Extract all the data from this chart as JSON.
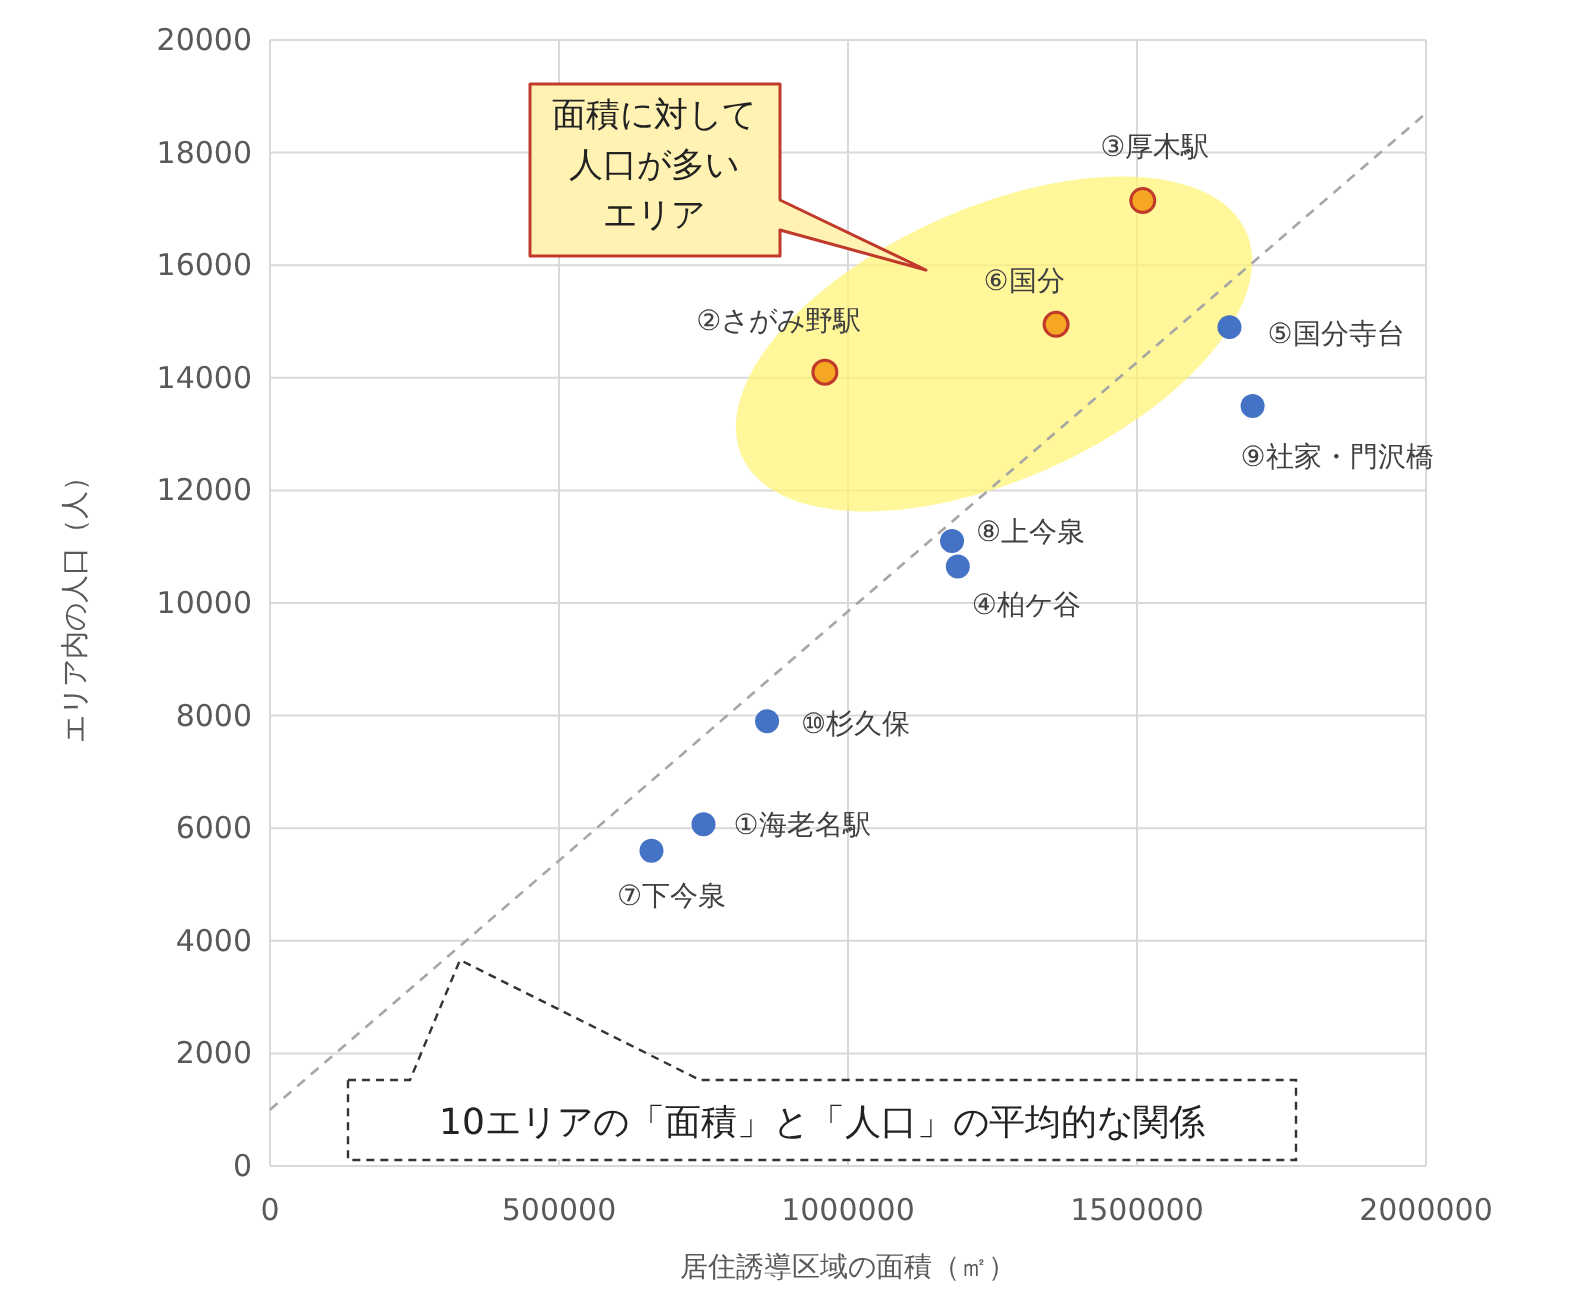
{
  "chart_data": {
    "type": "scatter",
    "xlabel": "居住誘導区域の面積（㎡）",
    "ylabel": "エリア内の人口（人）",
    "xlim": [
      0,
      2000000
    ],
    "xticks": [
      0,
      500000,
      1000000,
      1500000,
      2000000
    ],
    "ylim": [
      0,
      20000
    ],
    "yticks": [
      0,
      2000,
      4000,
      6000,
      8000,
      10000,
      12000,
      14000,
      16000,
      18000,
      20000
    ],
    "grid": true,
    "marker": "circle",
    "series": [
      {
        "color": "#4472c4",
        "x": [
          750000,
          1190000,
          1660000,
          660000,
          1180000,
          1700000,
          860000
        ],
        "values": [
          6070,
          10650,
          14900,
          5600,
          11100,
          13500,
          7900
        ]
      },
      {
        "color": "#f5a623",
        "x": [
          960000,
          1510000,
          1360000
        ],
        "values": [
          14100,
          17150,
          14950
        ]
      },
      {
        "type": "line",
        "line_style": "dashed",
        "marker": "none",
        "color": "#a6a6a6",
        "x": [
          0,
          2000000
        ],
        "values": [
          1000,
          18700
        ]
      }
    ],
    "annotations": [
      {
        "text": "①海老名駅",
        "x": 750000,
        "y": 6070
      },
      {
        "text": "②さがみ野駅",
        "x": 960000,
        "y": 14100
      },
      {
        "text": "③厚木駅",
        "x": 1510000,
        "y": 17150
      },
      {
        "text": "④柏ケ谷",
        "x": 1190000,
        "y": 10650
      },
      {
        "text": "⑤国分寺台",
        "x": 1660000,
        "y": 14900
      },
      {
        "text": "⑥国分",
        "x": 1360000,
        "y": 14950
      },
      {
        "text": "⑦下今泉",
        "x": 660000,
        "y": 5600
      },
      {
        "text": "⑧上今泉",
        "x": 1180000,
        "y": 11100
      },
      {
        "text": "⑨社家・門沢橋",
        "x": 1700000,
        "y": 13500
      },
      {
        "text": "⑩杉久保",
        "x": 860000,
        "y": 7900
      },
      "面積に対して",
      "人口が多い",
      "エリア",
      "10エリアの「面積」と「人口」の平均的な関係"
    ]
  }
}
